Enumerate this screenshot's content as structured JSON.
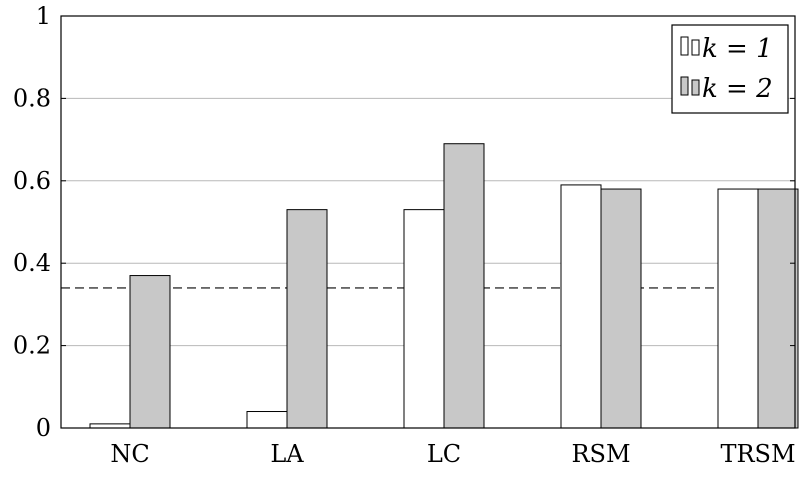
{
  "chart_data": {
    "type": "bar",
    "title": "",
    "xlabel": "",
    "ylabel": "",
    "categories": [
      "NC",
      "LA",
      "LC",
      "RSM",
      "TRSM"
    ],
    "series": [
      {
        "name": "k = 1",
        "values": [
          0.01,
          0.04,
          0.53,
          0.59,
          0.58
        ],
        "color": "#ffffff"
      },
      {
        "name": "k = 2",
        "values": [
          0.37,
          0.53,
          0.69,
          0.58,
          0.58
        ],
        "color": "#c8c8c8"
      }
    ],
    "ylim": [
      0,
      1
    ],
    "yticks": [
      0,
      0.2,
      0.4,
      0.6,
      0.8,
      1
    ],
    "ytick_labels": [
      "0",
      "0.2",
      "0.4",
      "0.6",
      "0.8",
      "1"
    ],
    "reference_line": {
      "value": 0.34,
      "style": "dashed"
    },
    "grid": "horizontal",
    "legend_position": "top-right"
  }
}
